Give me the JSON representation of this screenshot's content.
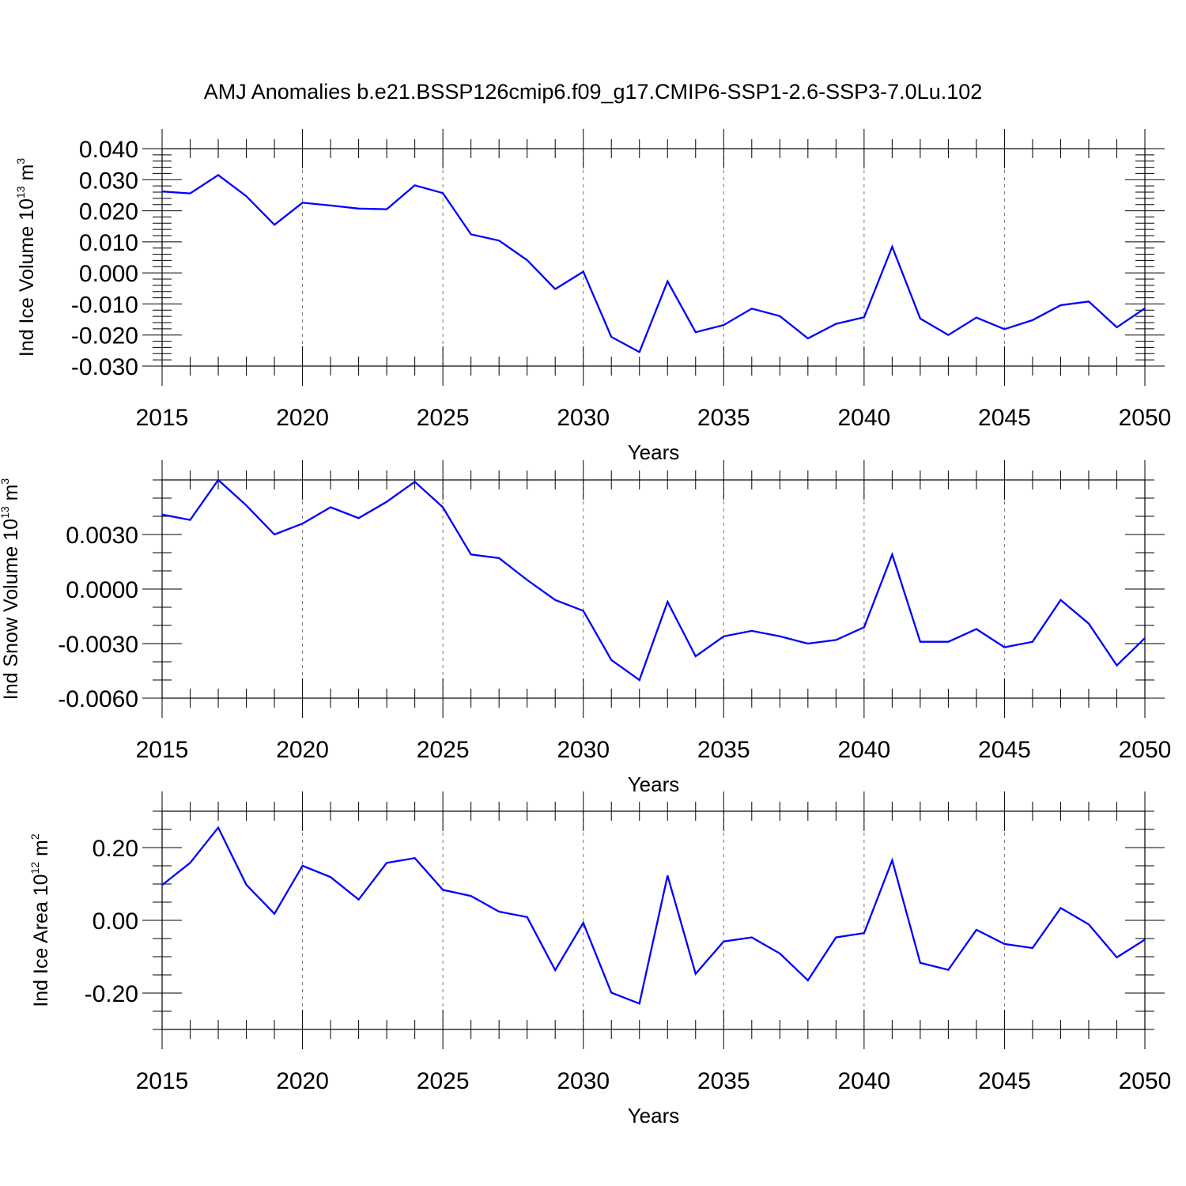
{
  "figure_title": "AMJ Anomalies b.e21.BSSP126cmip6.f09_g17.CMIP6-SSP1-2.6-SSP3-7.0Lu.102",
  "panels": [
    {
      "ylabel_text": "Ind Ice Volume 10",
      "ylabel_exp": "13",
      "ylabel_unit": " m",
      "ylabel_unit_exp": "3"
    },
    {
      "ylabel_text": "Ind Snow Volume 10",
      "ylabel_exp": "13",
      "ylabel_unit": " m",
      "ylabel_unit_exp": "3"
    },
    {
      "ylabel_text": "Ind Ice Area 10",
      "ylabel_exp": "12",
      "ylabel_unit": " m",
      "ylabel_unit_exp": "2"
    }
  ],
  "chart_data": [
    {
      "type": "line",
      "title": "AMJ Anomalies b.e21.BSSP126cmip6.f09_g17.CMIP6-SSP1-2.6-SSP3-7.0Lu.102",
      "xlabel": "Years",
      "ylabel": "Ind Ice Volume 10^13 m^3",
      "xlim": [
        2015,
        2050
      ],
      "ylim": [
        -0.03,
        0.04
      ],
      "x_ticks": [
        2015,
        2020,
        2025,
        2030,
        2035,
        2040,
        2045,
        2050
      ],
      "x_tick_labels": [
        "2015",
        "2020",
        "2025",
        "2030",
        "2035",
        "2040",
        "2045",
        "2050"
      ],
      "y_ticks": [
        -0.03,
        -0.02,
        -0.01,
        0.0,
        0.01,
        0.02,
        0.03,
        0.04
      ],
      "y_tick_labels": [
        "-0.030",
        "-0.020",
        "-0.010",
        "0.000",
        "0.010",
        "0.020",
        "0.030",
        "0.040"
      ],
      "y_minor_step": 0.002,
      "grid": "vertical dashed at major x ticks",
      "series": [
        {
          "color": "#0000ff",
          "x": [
            2015,
            2016,
            2017,
            2018,
            2019,
            2020,
            2021,
            2022,
            2023,
            2024,
            2025,
            2026,
            2027,
            2028,
            2029,
            2030,
            2031,
            2032,
            2033,
            2034,
            2035,
            2036,
            2037,
            2038,
            2039,
            2040,
            2041,
            2042,
            2043,
            2044,
            2045,
            2046,
            2047,
            2048,
            2049,
            2050
          ],
          "y": [
            0.0262,
            0.0256,
            0.0315,
            0.0247,
            0.0155,
            0.0226,
            0.0217,
            0.0207,
            0.0205,
            0.0282,
            0.0257,
            0.0124,
            0.0104,
            0.0041,
            -0.0052,
            0.0004,
            -0.0206,
            -0.0255,
            -0.0027,
            -0.0191,
            -0.0168,
            -0.0115,
            -0.0139,
            -0.0211,
            -0.0164,
            -0.0143,
            0.0084,
            -0.0147,
            -0.02,
            -0.0144,
            -0.0181,
            -0.0152,
            -0.0104,
            -0.0092,
            -0.0175,
            -0.0114
          ]
        }
      ]
    },
    {
      "type": "line",
      "xlabel": "Years",
      "ylabel": "Ind Snow Volume 10^13 m^3",
      "xlim": [
        2015,
        2050
      ],
      "ylim": [
        -0.006,
        0.006
      ],
      "x_ticks": [
        2015,
        2020,
        2025,
        2030,
        2035,
        2040,
        2045,
        2050
      ],
      "x_tick_labels": [
        "2015",
        "2020",
        "2025",
        "2030",
        "2035",
        "2040",
        "2045",
        "2050"
      ],
      "y_ticks": [
        -0.006,
        -0.003,
        0.0,
        0.003
      ],
      "y_tick_labels": [
        "-0.0060",
        "-0.0030",
        "0.0000",
        "0.0030"
      ],
      "y_minor_step": 0.001,
      "grid": "vertical dashed at major x ticks",
      "series": [
        {
          "color": "#0000ff",
          "x": [
            2015,
            2016,
            2017,
            2018,
            2019,
            2020,
            2021,
            2022,
            2023,
            2024,
            2025,
            2026,
            2027,
            2028,
            2029,
            2030,
            2031,
            2032,
            2033,
            2034,
            2035,
            2036,
            2037,
            2038,
            2039,
            2040,
            2041,
            2042,
            2043,
            2044,
            2045,
            2046,
            2047,
            2048,
            2049,
            2050
          ],
          "y": [
            0.0041,
            0.0038,
            0.006,
            0.0046,
            0.003,
            0.0036,
            0.0045,
            0.0039,
            0.0048,
            0.0059,
            0.0045,
            0.0019,
            0.0017,
            0.0005,
            -0.0006,
            -0.0012,
            -0.0039,
            -0.005,
            -0.0007,
            -0.0037,
            -0.0026,
            -0.0023,
            -0.0026,
            -0.003,
            -0.0028,
            -0.0021,
            0.0019,
            -0.0029,
            -0.0029,
            -0.0022,
            -0.0032,
            -0.0029,
            -0.0006,
            -0.0019,
            -0.0042,
            -0.0027
          ]
        }
      ]
    },
    {
      "type": "line",
      "xlabel": "Years",
      "ylabel": "Ind Ice Area 10^12 m^2",
      "xlim": [
        2015,
        2050
      ],
      "ylim": [
        -0.3,
        0.3
      ],
      "x_ticks": [
        2015,
        2020,
        2025,
        2030,
        2035,
        2040,
        2045,
        2050
      ],
      "x_tick_labels": [
        "2015",
        "2020",
        "2025",
        "2030",
        "2035",
        "2040",
        "2045",
        "2050"
      ],
      "y_ticks": [
        -0.2,
        0.0,
        0.2
      ],
      "y_tick_labels": [
        "-0.20",
        "0.00",
        "0.20"
      ],
      "y_minor_step": 0.05,
      "grid": "vertical dashed at major x ticks",
      "series": [
        {
          "color": "#0000ff",
          "x": [
            2015,
            2016,
            2017,
            2018,
            2019,
            2020,
            2021,
            2022,
            2023,
            2024,
            2025,
            2026,
            2027,
            2028,
            2029,
            2030,
            2031,
            2032,
            2033,
            2034,
            2035,
            2036,
            2037,
            2038,
            2039,
            2040,
            2041,
            2042,
            2043,
            2044,
            2045,
            2046,
            2047,
            2048,
            2049,
            2050
          ],
          "y": [
            0.097,
            0.158,
            0.255,
            0.098,
            0.018,
            0.15,
            0.119,
            0.057,
            0.158,
            0.171,
            0.084,
            0.067,
            0.024,
            0.009,
            -0.137,
            -0.007,
            -0.199,
            -0.229,
            0.123,
            -0.147,
            -0.058,
            -0.047,
            -0.091,
            -0.165,
            -0.047,
            -0.035,
            0.165,
            -0.117,
            -0.136,
            -0.026,
            -0.065,
            -0.076,
            0.034,
            -0.011,
            -0.102,
            -0.053
          ]
        }
      ]
    }
  ]
}
